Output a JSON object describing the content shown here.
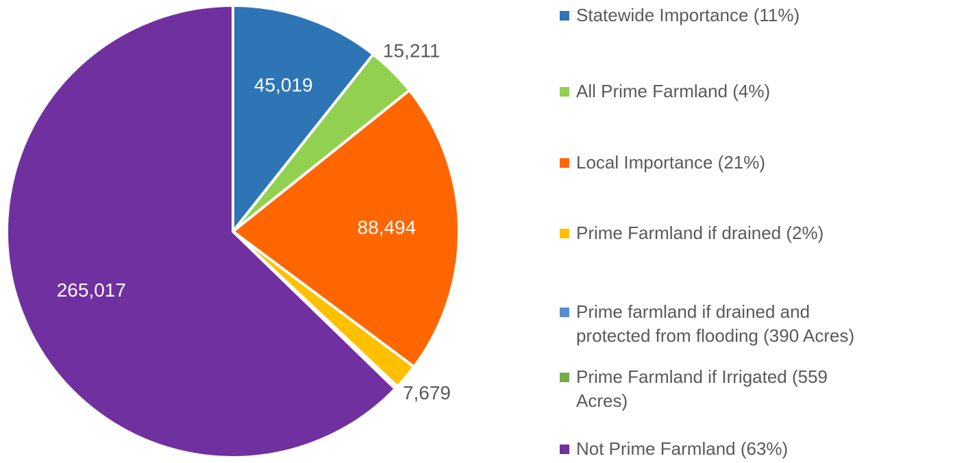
{
  "chart_data": {
    "type": "pie",
    "categories": [
      "Statewide Importance (11%)",
      "All Prime Farmland (4%)",
      "Local Importance (21%)",
      "Prime Farmland if drained (2%)",
      "Prime farmland if drained and protected from flooding (390 Acres)",
      "Prime Farmland if Irrigated (559 Acres)",
      "Not Prime Farmland (63%)"
    ],
    "values": [
      45019,
      15211,
      88494,
      7679,
      390,
      559,
      265017
    ],
    "value_labels": [
      "45,019",
      "15,211",
      "88,494",
      "7,679",
      null,
      null,
      "265,017"
    ],
    "colors": [
      "#2e75b6",
      "#92d050",
      "#ff6600",
      "#ffc000",
      "#5b8bd0",
      "#70ad47",
      "#7030a0"
    ],
    "legend": "right"
  }
}
